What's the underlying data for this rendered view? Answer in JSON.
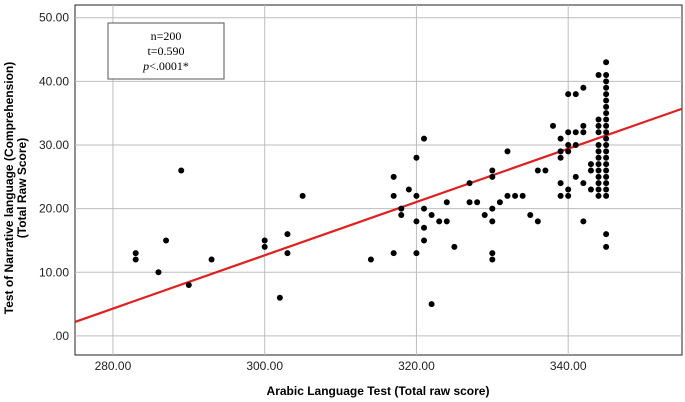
{
  "chart_data": {
    "type": "scatter",
    "title": "",
    "xlabel": "Arabic Language Test (Total raw score)",
    "ylabel": "Test of Narrative language (Comprehension)",
    "ylabel2": "(Total Raw Score)",
    "xlim": [
      275,
      355
    ],
    "ylim": [
      -3,
      52
    ],
    "x_ticks": [
      280,
      300,
      320,
      340
    ],
    "x_tick_labels": [
      "280.00",
      "300.00",
      "320.00",
      "340.00"
    ],
    "y_ticks": [
      0,
      10,
      20,
      30,
      40,
      50
    ],
    "y_tick_labels": [
      ".00",
      "10.00",
      "20.00",
      "30.00",
      "40.00",
      "50.00"
    ],
    "grid": true,
    "annotation": {
      "line1": "n=200",
      "line2": "t=0.590",
      "line3_italic": "p",
      "line3_rest": "<.0001*"
    },
    "fit_line": {
      "color": "#e02020",
      "x": [
        275,
        355
      ],
      "y": [
        2.2,
        35.7
      ]
    },
    "point_color": "#000000",
    "points": [
      [
        283,
        12
      ],
      [
        283,
        13
      ],
      [
        286,
        10
      ],
      [
        287,
        15
      ],
      [
        289,
        26
      ],
      [
        290,
        8
      ],
      [
        293,
        12
      ],
      [
        300,
        15
      ],
      [
        300,
        14
      ],
      [
        302,
        6
      ],
      [
        303,
        13
      ],
      [
        303,
        16
      ],
      [
        305,
        22
      ],
      [
        314,
        12
      ],
      [
        317,
        13
      ],
      [
        317,
        25
      ],
      [
        317,
        22
      ],
      [
        318,
        20
      ],
      [
        318,
        19
      ],
      [
        319,
        23
      ],
      [
        320,
        28
      ],
      [
        320,
        22
      ],
      [
        320,
        18
      ],
      [
        320,
        13
      ],
      [
        321,
        31
      ],
      [
        321,
        20
      ],
      [
        321,
        17
      ],
      [
        321,
        15
      ],
      [
        322,
        19
      ],
      [
        322,
        5
      ],
      [
        323,
        18
      ],
      [
        324,
        21
      ],
      [
        324,
        18
      ],
      [
        325,
        14
      ],
      [
        327,
        24
      ],
      [
        327,
        21
      ],
      [
        328,
        21
      ],
      [
        329,
        19
      ],
      [
        330,
        26
      ],
      [
        330,
        25
      ],
      [
        330,
        20
      ],
      [
        330,
        18
      ],
      [
        330,
        13
      ],
      [
        330,
        12
      ],
      [
        331,
        21
      ],
      [
        332,
        29
      ],
      [
        332,
        22
      ],
      [
        333,
        22
      ],
      [
        334,
        22
      ],
      [
        335,
        19
      ],
      [
        336,
        18
      ],
      [
        336,
        26
      ],
      [
        337,
        26
      ],
      [
        338,
        33
      ],
      [
        339,
        31
      ],
      [
        339,
        29
      ],
      [
        339,
        28
      ],
      [
        339,
        24
      ],
      [
        339,
        22
      ],
      [
        340,
        38
      ],
      [
        340,
        32
      ],
      [
        340,
        30
      ],
      [
        340,
        29
      ],
      [
        340,
        23
      ],
      [
        340,
        22
      ],
      [
        341,
        38
      ],
      [
        341,
        32
      ],
      [
        341,
        25
      ],
      [
        341,
        30
      ],
      [
        342,
        39
      ],
      [
        342,
        33
      ],
      [
        342,
        32
      ],
      [
        342,
        24
      ],
      [
        342,
        18
      ],
      [
        343,
        27
      ],
      [
        343,
        23
      ],
      [
        343,
        26
      ],
      [
        344,
        41
      ],
      [
        344,
        34
      ],
      [
        344,
        33
      ],
      [
        344,
        32
      ],
      [
        344,
        30
      ],
      [
        344,
        29
      ],
      [
        344,
        28
      ],
      [
        344,
        27
      ],
      [
        344,
        26
      ],
      [
        344,
        25
      ],
      [
        344,
        24
      ],
      [
        344,
        23
      ],
      [
        344,
        22
      ],
      [
        345,
        43
      ],
      [
        345,
        41
      ],
      [
        345,
        40
      ],
      [
        345,
        39
      ],
      [
        345,
        38
      ],
      [
        345,
        37
      ],
      [
        345,
        36
      ],
      [
        345,
        35
      ],
      [
        345,
        34
      ],
      [
        345,
        33
      ],
      [
        345,
        32
      ],
      [
        345,
        31
      ],
      [
        345,
        30
      ],
      [
        345,
        29
      ],
      [
        345,
        28
      ],
      [
        345,
        27
      ],
      [
        345,
        26
      ],
      [
        345,
        25
      ],
      [
        345,
        24
      ],
      [
        345,
        23
      ],
      [
        345,
        22
      ],
      [
        345,
        16
      ],
      [
        345,
        14
      ]
    ]
  }
}
